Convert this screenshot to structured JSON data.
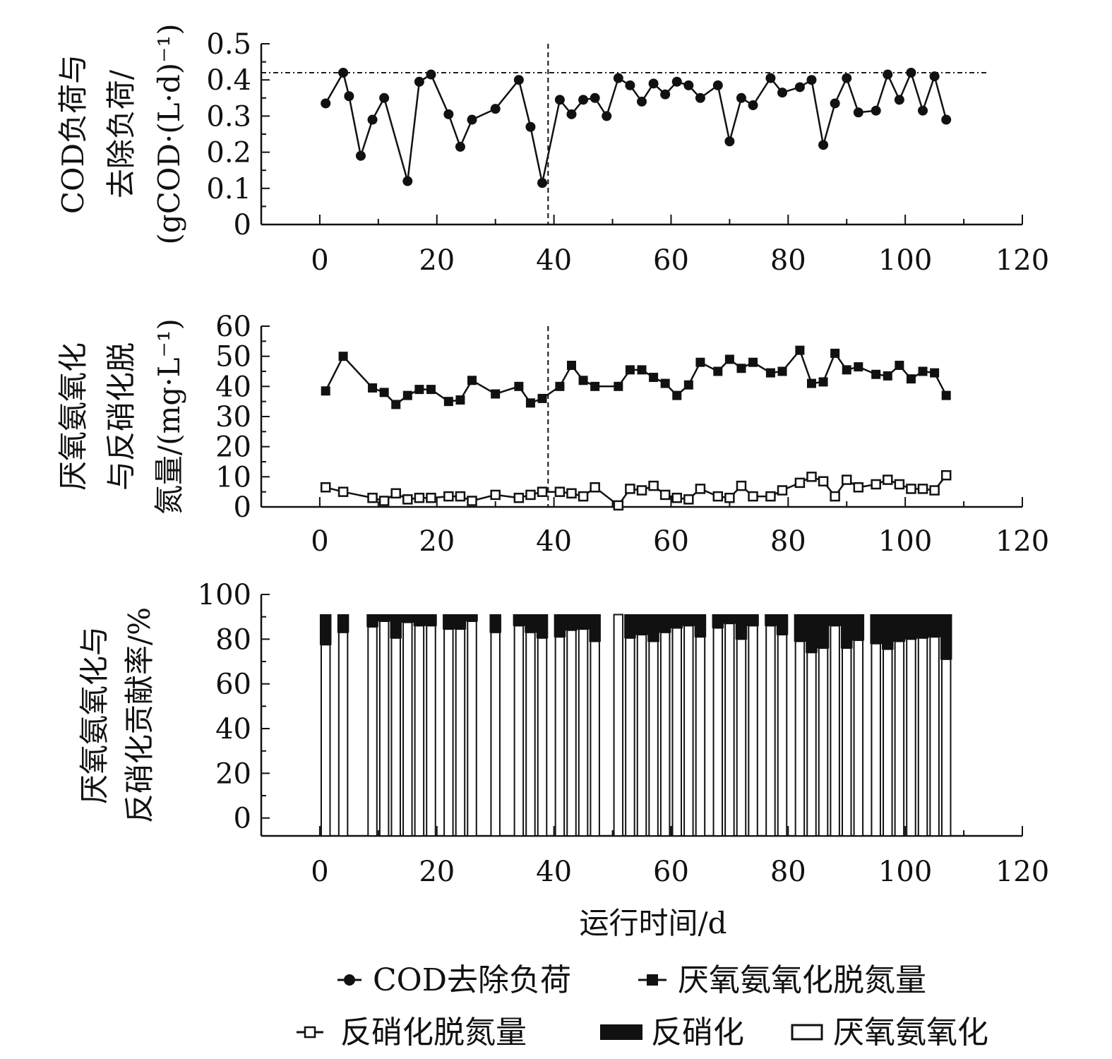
{
  "xaxis": {
    "label": "运行时间/d",
    "ticks": [
      "0",
      "20",
      "40",
      "60",
      "80",
      "100",
      "120"
    ],
    "range": [
      -10,
      120
    ]
  },
  "legend": [
    {
      "key": "cod",
      "label": "COD去除负荷"
    },
    {
      "key": "anammox_n",
      "label": "厌氧氨氧化脱氮量"
    },
    {
      "key": "denit_n",
      "label": "反硝化脱氮量"
    },
    {
      "key": "denit_pct",
      "label": "反硝化"
    },
    {
      "key": "anammox_pct",
      "label": "厌氧氨氧化"
    }
  ],
  "chart_data": [
    {
      "type": "line",
      "ylabel": [
        "COD负荷与",
        "去除负荷/",
        "(gCOD·(L·d)⁻¹)"
      ],
      "ylim": [
        0,
        0.5
      ],
      "yticks": [
        "0",
        "0.1",
        "0.2",
        "0.3",
        "0.4",
        "0.5"
      ],
      "hline": 0.42,
      "vline": 39,
      "series": [
        {
          "name": "COD去除负荷",
          "x": [
            1,
            4,
            5,
            7,
            9,
            11,
            15,
            17,
            19,
            22,
            24,
            26,
            30,
            34,
            36,
            38,
            41,
            43,
            45,
            47,
            49,
            51,
            53,
            55,
            57,
            59,
            61,
            63,
            65,
            68,
            70,
            72,
            74,
            77,
            79,
            82,
            84,
            86,
            88,
            90,
            92,
            95,
            97,
            99,
            101,
            103,
            105,
            107
          ],
          "y": [
            0.335,
            0.42,
            0.355,
            0.19,
            0.29,
            0.35,
            0.12,
            0.395,
            0.415,
            0.305,
            0.215,
            0.29,
            0.32,
            0.4,
            0.27,
            0.115,
            0.345,
            0.305,
            0.345,
            0.35,
            0.3,
            0.405,
            0.385,
            0.34,
            0.39,
            0.36,
            0.395,
            0.385,
            0.35,
            0.385,
            0.23,
            0.35,
            0.33,
            0.405,
            0.365,
            0.38,
            0.4,
            0.22,
            0.335,
            0.405,
            0.31,
            0.315,
            0.415,
            0.345,
            0.42,
            0.315,
            0.41,
            0.29
          ]
        }
      ]
    },
    {
      "type": "line",
      "ylabel": [
        "厌氧氨氧化",
        "与反硝化脱",
        "氮量/(mg·L⁻¹)"
      ],
      "ylim": [
        0,
        60
      ],
      "yticks": [
        "0",
        "10",
        "20",
        "30",
        "40",
        "50",
        "60"
      ],
      "vline": 39,
      "series": [
        {
          "name": "厌氧氨氧化脱氮量",
          "x": [
            1,
            4,
            9,
            11,
            13,
            15,
            17,
            19,
            22,
            24,
            26,
            30,
            34,
            36,
            38,
            41,
            43,
            45,
            47,
            51,
            53,
            55,
            57,
            59,
            61,
            63,
            65,
            68,
            70,
            72,
            74,
            77,
            79,
            82,
            84,
            86,
            88,
            90,
            92,
            95,
            97,
            99,
            101,
            103,
            105,
            107
          ],
          "y": [
            38.5,
            50,
            39.5,
            38,
            34,
            37,
            39,
            39,
            35,
            35.5,
            42,
            37.5,
            40,
            34.5,
            36,
            40,
            47,
            42,
            40,
            40,
            45.5,
            45.5,
            43,
            41,
            37,
            40.5,
            48,
            45,
            49,
            46,
            48,
            44.5,
            45,
            52,
            41,
            41.5,
            51,
            45.5,
            46.5,
            44,
            43.5,
            47,
            42.5,
            45,
            44.5,
            37
          ]
        },
        {
          "name": "反硝化脱氮量",
          "x": [
            1,
            4,
            9,
            11,
            13,
            15,
            17,
            19,
            22,
            24,
            26,
            30,
            34,
            36,
            38,
            41,
            43,
            45,
            47,
            51,
            53,
            55,
            57,
            59,
            61,
            63,
            65,
            68,
            70,
            72,
            74,
            77,
            79,
            82,
            84,
            86,
            88,
            90,
            92,
            95,
            97,
            99,
            101,
            103,
            105,
            107
          ],
          "y": [
            6.5,
            5,
            3,
            2,
            4.5,
            2.5,
            3,
            3,
            3.5,
            3.5,
            2,
            4,
            3,
            4,
            5,
            5,
            4.5,
            3.5,
            6.5,
            0.5,
            6,
            5.5,
            7,
            4,
            3,
            2.5,
            6,
            3.5,
            3,
            7,
            3.5,
            3.5,
            5.5,
            8,
            10,
            8.5,
            3.5,
            9,
            6.5,
            7.5,
            9,
            7.5,
            6,
            6,
            5.5,
            10.5
          ]
        }
      ]
    },
    {
      "type": "bar",
      "stacked": true,
      "ylabel": [
        "厌氧氨氧化与",
        "反硝化贡献率/%"
      ],
      "ylim": [
        -8,
        100
      ],
      "yticks": [
        "0",
        "20",
        "40",
        "60",
        "80",
        "100"
      ],
      "x": [
        1,
        4,
        9,
        11,
        13,
        15,
        17,
        19,
        22,
        24,
        26,
        30,
        34,
        36,
        38,
        41,
        43,
        45,
        47,
        51,
        53,
        55,
        57,
        59,
        61,
        63,
        65,
        68,
        70,
        72,
        74,
        77,
        79,
        82,
        84,
        86,
        88,
        90,
        92,
        95,
        97,
        99,
        101,
        103,
        105,
        107
      ],
      "series": [
        {
          "name": "厌氧氨氧化",
          "values": [
            77.5,
            83,
            85.5,
            88,
            80.5,
            87.5,
            86,
            86,
            84.5,
            84.5,
            88,
            83,
            86,
            83,
            80.5,
            81,
            84,
            84.5,
            79,
            91,
            80.5,
            82,
            79,
            83,
            85,
            86,
            81,
            85,
            87,
            80,
            86,
            86,
            82,
            79,
            74,
            76,
            86,
            76,
            79.5,
            78,
            75.5,
            79,
            80,
            80.5,
            81,
            71
          ]
        },
        {
          "name": "反硝化",
          "values": [
            13.5,
            8,
            5.5,
            3,
            10.5,
            3.5,
            5,
            5,
            6.5,
            6.5,
            3,
            8,
            5,
            8,
            10.5,
            10,
            7,
            6.5,
            12,
            0,
            10.5,
            9,
            12,
            8,
            6,
            5,
            10,
            6,
            4,
            11,
            5,
            5,
            9,
            12,
            17,
            15,
            5,
            15,
            11.5,
            13,
            15.5,
            12,
            11,
            10.5,
            10,
            20
          ]
        }
      ]
    }
  ]
}
